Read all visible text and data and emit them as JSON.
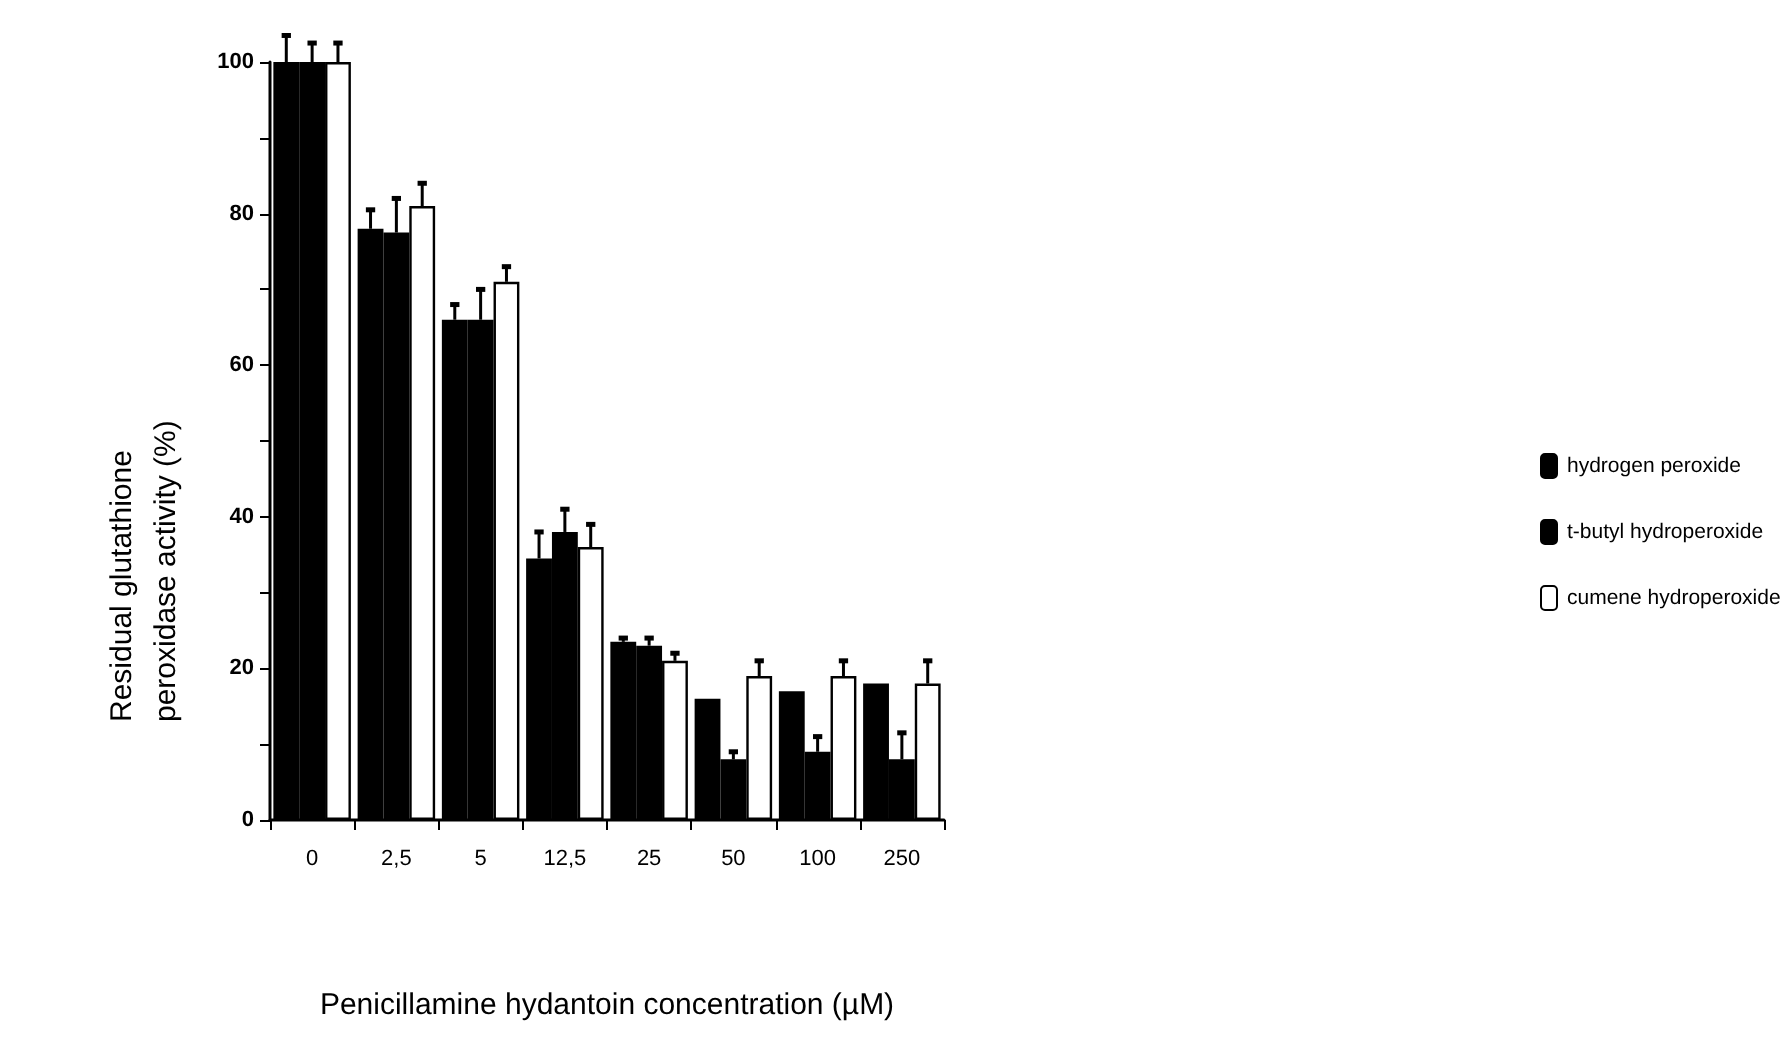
{
  "chart_data": {
    "type": "bar",
    "xlabel": "Penicillamine hydantoin concentration (µM)",
    "ylabel": "Residual glutathione peroxidase activity (%)",
    "categories": [
      "0",
      "2,5",
      "5",
      "12,5",
      "25",
      "50",
      "100",
      "250"
    ],
    "series": [
      {
        "name": "hydrogen peroxide",
        "color": "#000000",
        "values": [
          100,
          78,
          66,
          34.5,
          23.5,
          16,
          17,
          18
        ],
        "errors": [
          [
            100,
            103.5
          ],
          [
            78,
            80.5
          ],
          [
            66,
            68
          ],
          [
            34.5,
            38
          ],
          [
            23.5,
            24
          ],
          null,
          null,
          null
        ]
      },
      {
        "name": "t-butyl hydroperoxide",
        "color": "#000000",
        "values": [
          100,
          77.5,
          66,
          38,
          23,
          8,
          9,
          8
        ],
        "errors": [
          [
            100,
            102.5
          ],
          [
            77.5,
            82
          ],
          [
            66,
            70
          ],
          [
            38,
            41
          ],
          [
            23,
            24
          ],
          [
            8,
            9
          ],
          [
            9,
            11
          ],
          [
            8,
            11.5
          ]
        ]
      },
      {
        "name": "cumene hydroperoxide",
        "color": "#ffffff",
        "values": [
          100,
          81,
          71,
          36,
          21,
          19,
          19,
          18
        ],
        "errors": [
          [
            100,
            102.5
          ],
          [
            81,
            84
          ],
          [
            71,
            73
          ],
          [
            36,
            39
          ],
          [
            21,
            22
          ],
          [
            19,
            21
          ],
          [
            19,
            21
          ],
          [
            18,
            21
          ]
        ]
      }
    ],
    "ylim": [
      0,
      100
    ],
    "yticks": [
      0,
      {
        "value": 10,
        "label": null
      },
      20,
      {
        "value": 30,
        "label": null
      },
      40,
      {
        "value": 50,
        "label": null
      },
      60,
      {
        "value": 70,
        "label": null
      },
      80,
      {
        "value": 90,
        "label": null
      },
      100
    ],
    "grid": false,
    "legend": "right"
  }
}
